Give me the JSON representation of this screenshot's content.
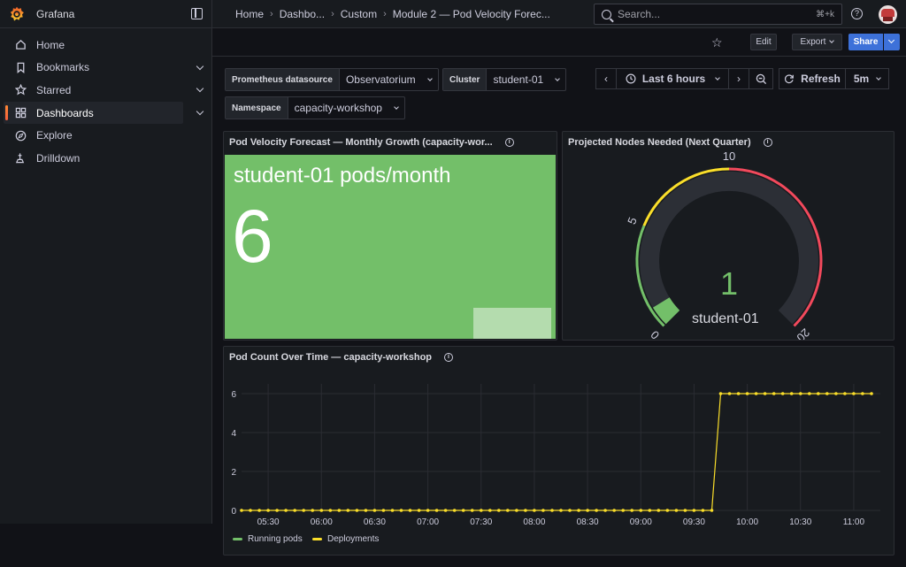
{
  "app": {
    "name": "Grafana"
  },
  "breadcrumbs": [
    "Home",
    "Dashbo...",
    "Custom",
    "Module 2 — Pod Velocity Forec..."
  ],
  "search": {
    "placeholder": "Search...",
    "shortcut": "⌘+k"
  },
  "sidebar": {
    "items": [
      {
        "label": "Home",
        "icon": "home-icon",
        "chevron": false,
        "active": false
      },
      {
        "label": "Bookmarks",
        "icon": "bookmark-icon",
        "chevron": true,
        "active": false
      },
      {
        "label": "Starred",
        "icon": "star-icon",
        "chevron": true,
        "active": false
      },
      {
        "label": "Dashboards",
        "icon": "dashboards-grid-icon",
        "chevron": true,
        "active": true
      },
      {
        "label": "Explore",
        "icon": "compass-icon",
        "chevron": false,
        "active": false
      },
      {
        "label": "Drilldown",
        "icon": "drilldown-icon",
        "chevron": false,
        "active": false
      }
    ]
  },
  "toolbar": {
    "edit_label": "Edit",
    "export_label": "Export",
    "share_label": "Share"
  },
  "variables": {
    "datasource": {
      "label": "Prometheus datasource",
      "value": "Observatorium"
    },
    "cluster": {
      "label": "Cluster",
      "value": "student-01"
    },
    "namespace": {
      "label": "Namespace",
      "value": "capacity-workshop"
    }
  },
  "time_controls": {
    "range": "Last 6 hours",
    "refresh_label": "Refresh",
    "refresh_interval": "5m"
  },
  "panels": {
    "stat": {
      "title": "Pod Velocity Forecast — Monthly Growth (capacity-wor...",
      "label": "student-01 pods/month",
      "value": "6",
      "color": "#73bf69"
    },
    "gauge": {
      "title": "Projected Nodes Needed (Next Quarter)",
      "value": 1,
      "value_text": "1",
      "name": "student-01",
      "min": 0,
      "max": 20,
      "ticks": [
        "0",
        "5",
        "10",
        "20"
      ],
      "thresholds": [
        {
          "from": 0,
          "to": 5,
          "color": "#73bf69"
        },
        {
          "from": 5,
          "to": 10,
          "color": "#fade2a"
        },
        {
          "from": 10,
          "to": 20,
          "color": "#f2495c"
        }
      ]
    },
    "timeseries": {
      "title": "Pod Count Over Time — capacity-workshop",
      "legend": [
        {
          "name": "Running pods",
          "color": "#73bf69"
        },
        {
          "name": "Deployments",
          "color": "#fade2a"
        }
      ]
    }
  },
  "chart_data": {
    "type": "line",
    "title": "Pod Count Over Time — capacity-workshop",
    "x_ticks": [
      "05:30",
      "06:00",
      "06:30",
      "07:00",
      "07:30",
      "08:00",
      "08:30",
      "09:00",
      "09:30",
      "10:00",
      "10:30",
      "11:00"
    ],
    "y_ticks": [
      "0",
      "2",
      "4",
      "6"
    ],
    "xlim": [
      "05:15",
      "11:15"
    ],
    "ylim": [
      0,
      6.5
    ],
    "grid": true,
    "legend_position": "bottom-left",
    "step_interval_minutes": 5,
    "series": [
      {
        "name": "Deployments",
        "color": "#fade2a",
        "start": "05:15",
        "end": "11:10",
        "jump_at": "09:45",
        "value_before": 0,
        "value_after": 6
      }
    ]
  }
}
